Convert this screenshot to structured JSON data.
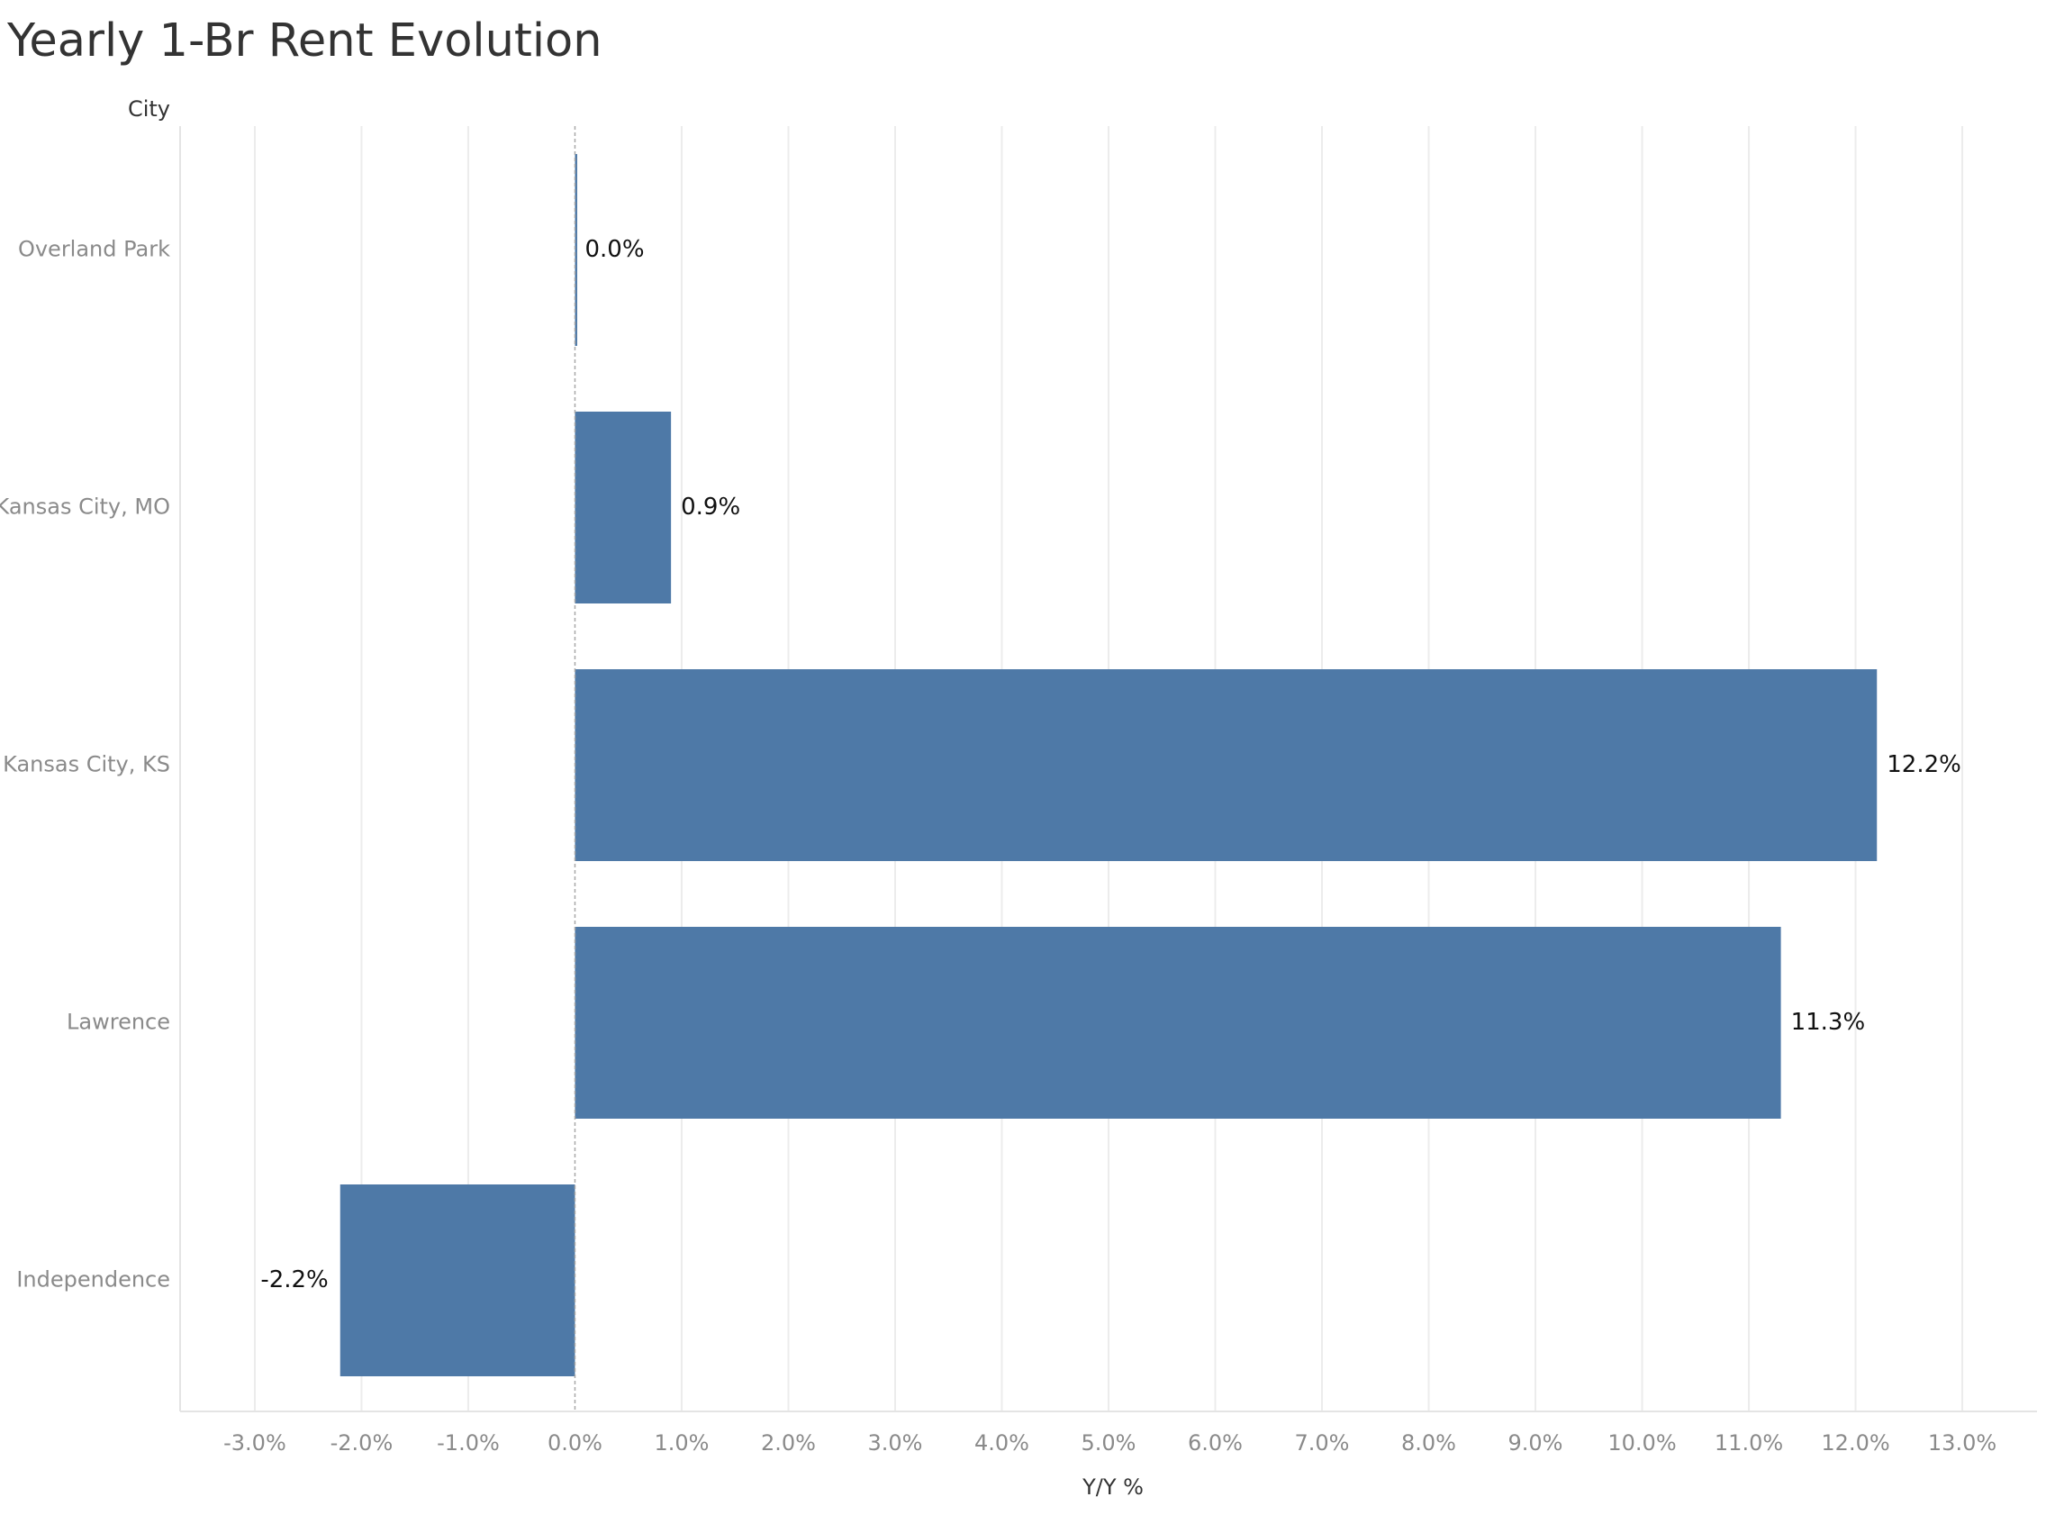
{
  "chart_data": {
    "type": "bar",
    "orientation": "horizontal",
    "title": "Yearly 1-Br Rent Evolution",
    "category_axis_label": "City",
    "value_axis_label": "Y/Y %",
    "categories": [
      "Overland Park",
      "Kansas City, MO",
      "Kansas City, KS",
      "Lawrence",
      "Independence"
    ],
    "values": [
      0.0,
      0.9,
      12.2,
      11.3,
      -2.2
    ],
    "data_labels": [
      "0.0%",
      "0.9%",
      "12.2%",
      "11.3%",
      "-2.2%"
    ],
    "ticks": [
      -3,
      -2,
      -1,
      0,
      1,
      2,
      3,
      4,
      5,
      6,
      7,
      8,
      9,
      10,
      11,
      12,
      13
    ],
    "tick_labels": [
      "-3.0%",
      "-2.0%",
      "-1.0%",
      "0.0%",
      "1.0%",
      "2.0%",
      "3.0%",
      "4.0%",
      "5.0%",
      "6.0%",
      "7.0%",
      "8.0%",
      "9.0%",
      "10.0%",
      "11.0%",
      "12.0%",
      "13.0%"
    ],
    "xlim": [
      -3.7,
      13.7
    ],
    "grid": true,
    "legend": "none",
    "bar_color": "#4e79a7"
  }
}
